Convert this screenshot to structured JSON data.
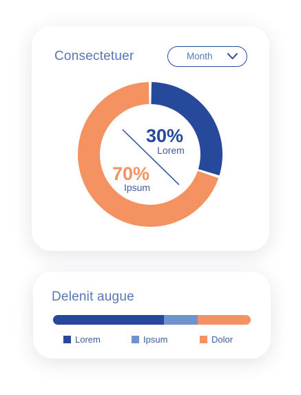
{
  "donut_card": {
    "title": "Consectetuer",
    "dropdown": {
      "selected": "Month",
      "icon": "chevron-down-icon"
    },
    "center": {
      "primary_value": "30%",
      "primary_label": "Lorem",
      "secondary_value": "70%",
      "secondary_label": "Ipsum"
    }
  },
  "bar_card": {
    "title": "Delenit augue",
    "legend": [
      {
        "label": "Lorem",
        "color": "#26499c"
      },
      {
        "label": "Ipsum",
        "color": "#6f93cf"
      },
      {
        "label": "Dolor",
        "color": "#f49262"
      }
    ]
  },
  "chart_data": [
    {
      "type": "pie",
      "variant": "donut",
      "series": [
        {
          "name": "Lorem",
          "value": 30,
          "color": "#26499c"
        },
        {
          "name": "Ipsum",
          "value": 70,
          "color": "#f49262"
        }
      ]
    },
    {
      "type": "bar",
      "variant": "stacked-horizontal",
      "series": [
        {
          "name": "Lorem",
          "value": 56,
          "color": "#26499c"
        },
        {
          "name": "Ipsum",
          "value": 17,
          "color": "#6f93cf"
        },
        {
          "name": "Dolor",
          "value": 27,
          "color": "#f49262"
        }
      ]
    }
  ]
}
